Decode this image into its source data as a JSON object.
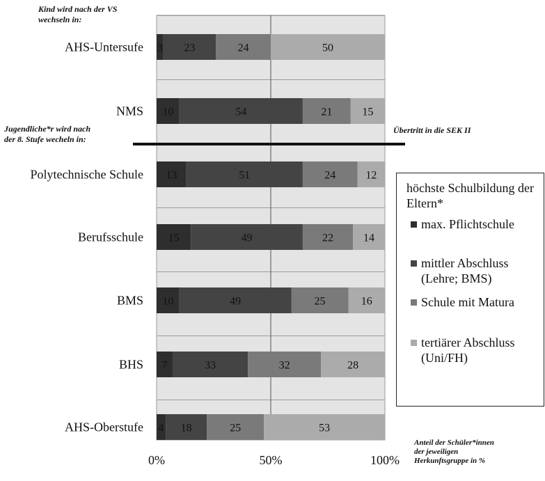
{
  "notes": {
    "top_left": [
      "Kind wird nach der VS",
      "wechseln in:"
    ],
    "mid_left": [
      "Jugendliche*r wird nach",
      "der 8. Stufe wecheln in:"
    ],
    "mid_right": "Übertritt in die SEK II",
    "bottom_right": [
      "Anteil der Schüler*innen",
      "der jeweiligen",
      "Herkunftsgruppe in %"
    ]
  },
  "legend": {
    "title": "höchste Schulbildung der Eltern*",
    "items": [
      {
        "label": "max. Pflichtschule",
        "color": "#2e2e2e"
      },
      {
        "label": "mittler Abschluss (Lehre; BMS)",
        "color": "#444444"
      },
      {
        "label": "Schule mit Matura",
        "color": "#7a7a7a"
      },
      {
        "label": "tertiärer Abschluss (Uni/FH)",
        "color": "#ababab"
      }
    ]
  },
  "chart_data": {
    "type": "bar",
    "orientation": "horizontal",
    "stacked": true,
    "percent": true,
    "categories": [
      "AHS-Untersufe",
      "NMS",
      "Polytechnische Schule",
      "Berufsschule",
      "BMS",
      "BHS",
      "AHS-Oberstufe"
    ],
    "series": [
      {
        "name": "max. Pflichtschule",
        "values": [
          3,
          10,
          13,
          15,
          10,
          7,
          4
        ],
        "color": "#2e2e2e"
      },
      {
        "name": "mittler Abschluss (Lehre; BMS)",
        "values": [
          23,
          54,
          51,
          49,
          49,
          33,
          18
        ],
        "color": "#444444"
      },
      {
        "name": "Schule mit Matura",
        "values": [
          24,
          21,
          24,
          22,
          25,
          32,
          25
        ],
        "color": "#7a7a7a"
      },
      {
        "name": "tertiärer Abschluss (Uni/FH)",
        "values": [
          50,
          15,
          12,
          14,
          16,
          28,
          53
        ],
        "color": "#ababab"
      }
    ],
    "x_ticks": [
      "0%",
      "50%",
      "100%"
    ],
    "xlim": [
      0,
      100
    ],
    "plot_background": "#e4e4e4",
    "grid": true,
    "legend_position": "right"
  }
}
